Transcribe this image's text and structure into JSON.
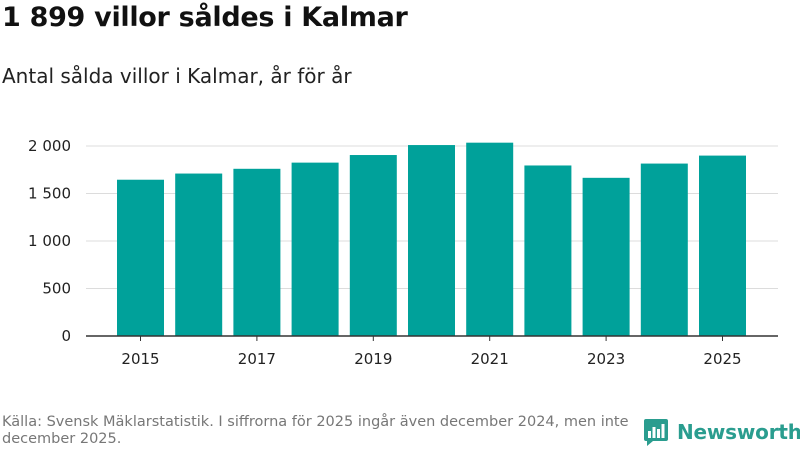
{
  "title": "1 899 villor såldes i Kalmar",
  "subtitle": "Antal sålda villor i Kalmar, år för år",
  "footer": "Källa: Svensk Mäklarstatistik. I siffrorna för 2025 ingår även december 2024, men inte december 2025.",
  "brand": "Newsworthy",
  "colors": {
    "bar": "#00a19a",
    "brand": "#2a9d8f",
    "grid": "#dcdcdc",
    "axis": "#333333"
  },
  "chart_data": {
    "type": "bar",
    "title": "1 899 villor såldes i Kalmar",
    "subtitle": "Antal sålda villor i Kalmar, år för år",
    "xlabel": "",
    "ylabel": "",
    "categories": [
      "2015",
      "2016",
      "2017",
      "2018",
      "2019",
      "2020",
      "2021",
      "2022",
      "2023",
      "2024",
      "2025"
    ],
    "values": [
      1645,
      1710,
      1760,
      1825,
      1905,
      2010,
      2035,
      1795,
      1665,
      1815,
      1899
    ],
    "x_tick_labels": [
      "2015",
      "2017",
      "2019",
      "2021",
      "2023",
      "2025"
    ],
    "y_ticks": [
      0,
      500,
      1000,
      1500,
      2000
    ],
    "y_tick_labels": [
      "0",
      "500",
      "1 000",
      "1 500",
      "2 000"
    ],
    "ylim": [
      0,
      2000
    ],
    "grid": true
  }
}
